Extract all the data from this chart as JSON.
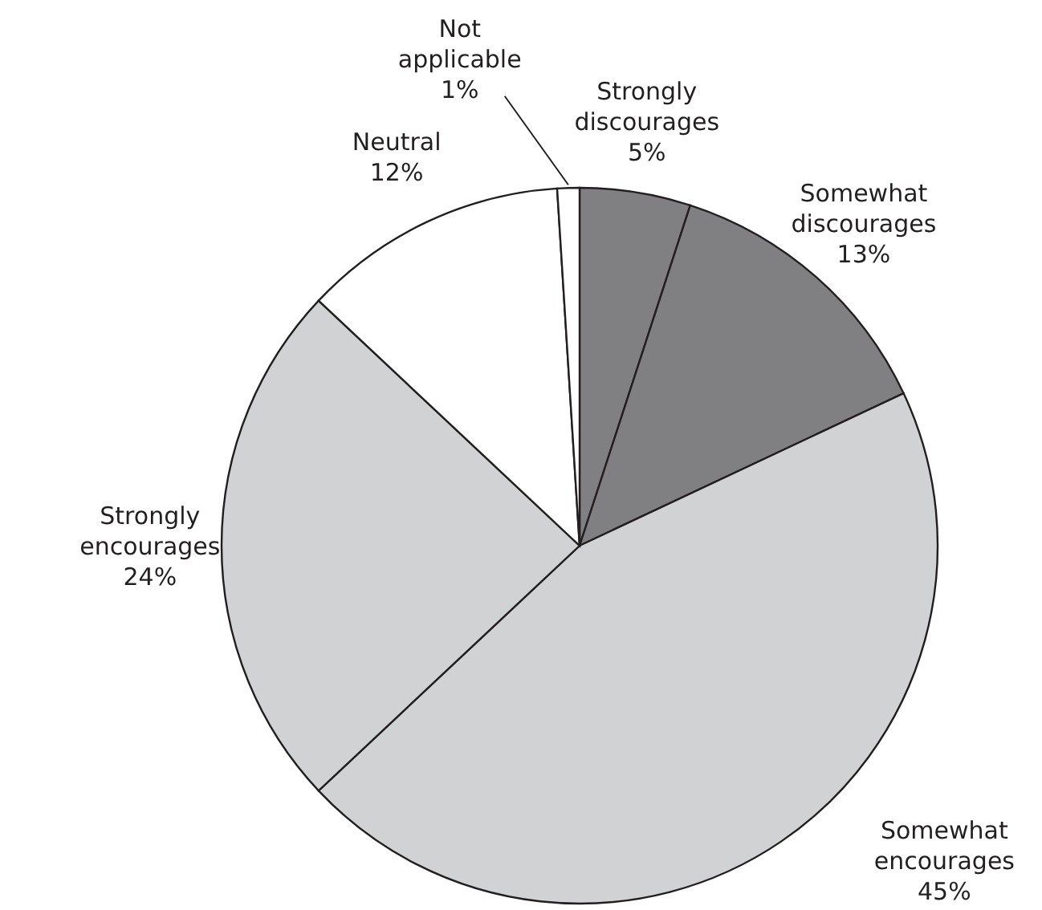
{
  "chart_data": {
    "type": "pie",
    "categories": [
      "Strongly discourages",
      "Somewhat discourages",
      "Somewhat encourages",
      "Strongly encourages",
      "Neutral",
      "Not applicable"
    ],
    "values": [
      5,
      13,
      45,
      24,
      12,
      1
    ],
    "value_labels": [
      "5%",
      "13%",
      "45%",
      "24%",
      "12%",
      "1%"
    ],
    "colors": [
      "#808083",
      "#808083",
      "#d1d2d4",
      "#d1d2d4",
      "#ffffff",
      "#ffffff"
    ]
  }
}
